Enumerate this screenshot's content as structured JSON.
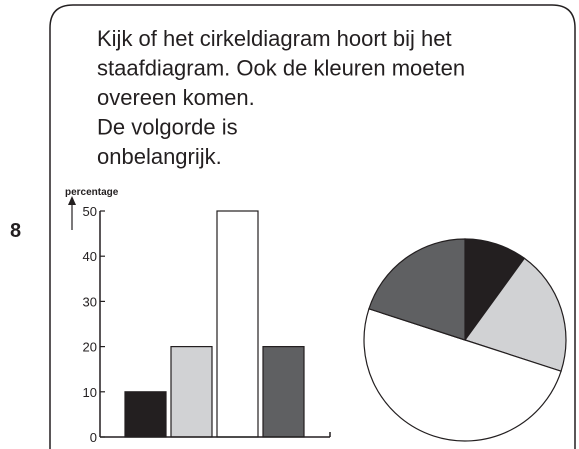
{
  "number": "8",
  "instruction": [
    "Kijk of het cirkeldiagram hoort bij het",
    "staafdiagram. Ook de kleuren moeten",
    "overeen komen.",
    "De volgorde is",
    "onbelangrijk."
  ],
  "chart_data": [
    {
      "type": "bar",
      "y_label": "percentage",
      "categories": [
        null,
        null,
        null,
        null
      ],
      "values": [
        10,
        20,
        50,
        20
      ],
      "colors": [
        "#231f20",
        "#d1d2d4",
        "#ffffff",
        "#5f6062"
      ],
      "ylim": [
        0,
        50
      ],
      "yticks": [
        0,
        10,
        20,
        30,
        40,
        50
      ]
    },
    {
      "type": "pie",
      "values": [
        10,
        20,
        50,
        20
      ],
      "colors": [
        "#231f20",
        "#d1d2d4",
        "#ffffff",
        "#5f6062"
      ]
    }
  ]
}
